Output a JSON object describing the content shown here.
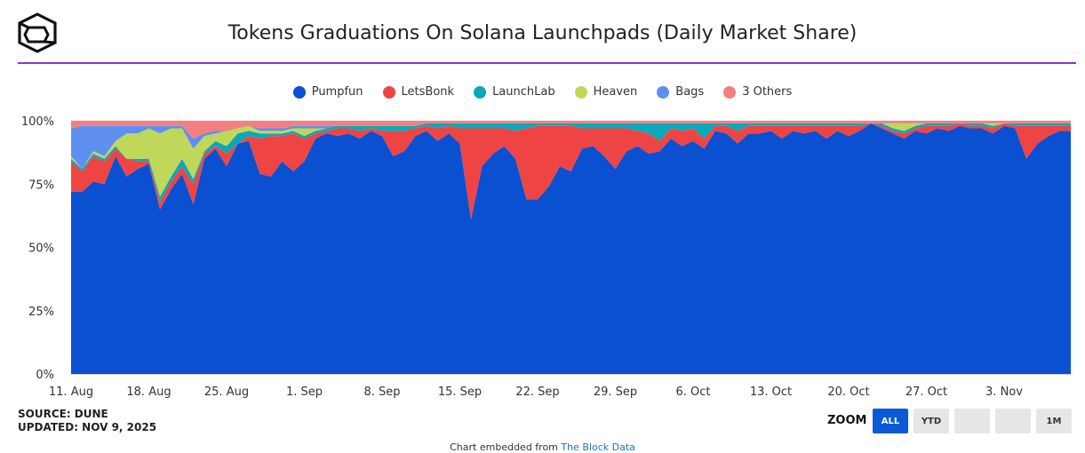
{
  "header": {
    "title": "Tokens Graduations On Solana Launchpads (Daily Market Share)"
  },
  "footer": {
    "source": "SOURCE: DUNE",
    "updated": "UPDATED: NOV 9, 2025",
    "zoom_label": "ZOOM",
    "zoom_buttons": [
      {
        "label": "ALL",
        "active": true
      },
      {
        "label": "YTD",
        "active": false
      },
      {
        "label": "",
        "active": false
      },
      {
        "label": "",
        "active": false
      },
      {
        "label": "1M",
        "active": false
      }
    ],
    "embed_prefix": "Chart embedded from",
    "embed_link": "The Block Data"
  },
  "chart_data": {
    "type": "area",
    "stacked": true,
    "title": "Tokens Graduations On Solana Launchpads (Daily Market Share)",
    "legend_position": "top",
    "ylim": [
      0,
      100
    ],
    "y_ticks": [
      "0%",
      "25%",
      "50%",
      "75%",
      "100%"
    ],
    "x_ticks": [
      "11. Aug",
      "18. Aug",
      "25. Aug",
      "1. Sep",
      "8. Sep",
      "15. Sep",
      "22. Sep",
      "29. Sep",
      "6. Oct",
      "13. Oct",
      "20. Oct",
      "27. Oct",
      "3. Nov"
    ],
    "x_start": "2025-08-11",
    "x_end": "2025-11-09",
    "series": [
      {
        "name": "Pumpfun",
        "color": "#0b50d1"
      },
      {
        "name": "LetsBonk",
        "color": "#ef4444"
      },
      {
        "name": "LaunchLab",
        "color": "#0aa8b8"
      },
      {
        "name": "Heaven",
        "color": "#bfd85a"
      },
      {
        "name": "Bags",
        "color": "#5e8ff0"
      },
      {
        "name": "3 Others",
        "color": "#f57f7f"
      }
    ],
    "points": [
      {
        "date": "2025-08-11",
        "values": [
          72,
          12,
          1,
          1,
          11,
          3
        ]
      },
      {
        "date": "2025-08-12",
        "values": [
          72,
          8,
          1,
          0,
          17,
          2
        ]
      },
      {
        "date": "2025-08-13",
        "values": [
          76,
          10,
          1,
          1,
          10,
          2
        ]
      },
      {
        "date": "2025-08-14",
        "values": [
          75,
          9,
          1,
          1,
          12,
          2
        ]
      },
      {
        "date": "2025-08-15",
        "values": [
          86,
          3,
          1,
          2,
          6,
          2
        ]
      },
      {
        "date": "2025-08-16",
        "values": [
          78,
          7,
          0,
          10,
          3,
          2
        ]
      },
      {
        "date": "2025-08-17",
        "values": [
          81,
          3,
          1,
          10,
          3,
          2
        ]
      },
      {
        "date": "2025-08-18",
        "values": [
          83,
          1,
          1,
          12,
          1,
          2
        ]
      },
      {
        "date": "2025-08-19",
        "values": [
          65,
          3,
          2,
          25,
          3,
          2
        ]
      },
      {
        "date": "2025-08-20",
        "values": [
          73,
          3,
          2,
          19,
          1,
          2
        ]
      },
      {
        "date": "2025-08-21",
        "values": [
          79,
          3,
          3,
          12,
          1,
          2
        ]
      },
      {
        "date": "2025-08-22",
        "values": [
          67,
          8,
          2,
          12,
          4,
          7
        ]
      },
      {
        "date": "2025-08-23",
        "values": [
          85,
          2,
          1,
          6,
          1,
          5
        ]
      },
      {
        "date": "2025-08-24",
        "values": [
          89,
          1,
          2,
          3,
          1,
          4
        ]
      },
      {
        "date": "2025-08-25",
        "values": [
          82,
          5,
          3,
          6,
          0,
          4
        ]
      },
      {
        "date": "2025-08-26",
        "values": [
          91,
          0,
          4,
          2,
          0,
          3
        ]
      },
      {
        "date": "2025-08-27",
        "values": [
          92,
          2,
          2,
          2,
          0,
          2
        ]
      },
      {
        "date": "2025-08-28",
        "values": [
          79,
          14,
          2,
          1,
          1,
          3
        ]
      },
      {
        "date": "2025-08-29",
        "values": [
          78,
          16,
          1,
          1,
          1,
          3
        ]
      },
      {
        "date": "2025-08-30",
        "values": [
          84,
          10,
          1,
          1,
          1,
          3
        ]
      },
      {
        "date": "2025-08-31",
        "values": [
          80,
          15,
          1,
          1,
          1,
          2
        ]
      },
      {
        "date": "2025-09-01",
        "values": [
          84,
          9,
          1,
          3,
          1,
          2
        ]
      },
      {
        "date": "2025-09-02",
        "values": [
          93,
          2,
          1,
          1,
          1,
          2
        ]
      },
      {
        "date": "2025-09-03",
        "values": [
          95,
          1,
          1,
          0,
          1,
          2
        ]
      },
      {
        "date": "2025-09-04",
        "values": [
          94,
          3,
          1,
          0,
          0,
          2
        ]
      },
      {
        "date": "2025-09-05",
        "values": [
          95,
          2,
          1,
          0,
          0,
          2
        ]
      },
      {
        "date": "2025-09-06",
        "values": [
          93,
          3,
          2,
          0,
          0,
          2
        ]
      },
      {
        "date": "2025-09-07",
        "values": [
          96,
          1,
          1,
          0,
          0,
          2
        ]
      },
      {
        "date": "2025-09-08",
        "values": [
          94,
          2,
          2,
          0,
          0,
          2
        ]
      },
      {
        "date": "2025-09-09",
        "values": [
          86,
          10,
          2,
          0,
          0,
          2
        ]
      },
      {
        "date": "2025-09-10",
        "values": [
          88,
          8,
          2,
          0,
          0,
          2
        ]
      },
      {
        "date": "2025-09-11",
        "values": [
          94,
          3,
          1,
          0,
          0,
          2
        ]
      },
      {
        "date": "2025-09-12",
        "values": [
          96,
          2,
          1,
          0,
          0,
          1
        ]
      },
      {
        "date": "2025-09-13",
        "values": [
          92,
          5,
          2,
          0,
          0,
          1
        ]
      },
      {
        "date": "2025-09-14",
        "values": [
          95,
          3,
          1,
          0,
          0,
          1
        ]
      },
      {
        "date": "2025-09-15",
        "values": [
          91,
          6,
          2,
          0,
          0,
          1
        ]
      },
      {
        "date": "2025-09-16",
        "values": [
          61,
          36,
          2,
          0,
          0,
          1
        ]
      },
      {
        "date": "2025-09-17",
        "values": [
          82,
          15,
          2,
          0,
          0,
          1
        ]
      },
      {
        "date": "2025-09-18",
        "values": [
          87,
          10,
          2,
          0,
          0,
          1
        ]
      },
      {
        "date": "2025-09-19",
        "values": [
          90,
          7,
          2,
          0,
          0,
          1
        ]
      },
      {
        "date": "2025-09-20",
        "values": [
          85,
          11,
          3,
          0,
          0,
          1
        ]
      },
      {
        "date": "2025-09-21",
        "values": [
          69,
          28,
          2,
          0,
          0,
          1
        ]
      },
      {
        "date": "2025-09-22",
        "values": [
          69,
          29,
          1,
          0,
          0,
          1
        ]
      },
      {
        "date": "2025-09-23",
        "values": [
          74,
          24,
          1,
          0,
          0,
          1
        ]
      },
      {
        "date": "2025-09-24",
        "values": [
          82,
          16,
          1,
          0,
          0,
          1
        ]
      },
      {
        "date": "2025-09-25",
        "values": [
          80,
          18,
          1,
          0,
          0,
          1
        ]
      },
      {
        "date": "2025-09-26",
        "values": [
          89,
          8,
          2,
          0,
          0,
          1
        ]
      },
      {
        "date": "2025-09-27",
        "values": [
          90,
          7,
          2,
          0,
          0,
          1
        ]
      },
      {
        "date": "2025-09-28",
        "values": [
          86,
          11,
          2,
          0,
          0,
          1
        ]
      },
      {
        "date": "2025-09-29",
        "values": [
          81,
          16,
          2,
          0,
          0,
          1
        ]
      },
      {
        "date": "2025-09-30",
        "values": [
          88,
          9,
          2,
          0,
          0,
          1
        ]
      },
      {
        "date": "2025-10-01",
        "values": [
          90,
          6,
          3,
          0,
          0,
          1
        ]
      },
      {
        "date": "2025-10-02",
        "values": [
          87,
          8,
          4,
          0,
          0,
          1
        ]
      },
      {
        "date": "2025-10-03",
        "values": [
          88,
          4,
          7,
          0,
          0,
          1
        ]
      },
      {
        "date": "2025-10-04",
        "values": [
          93,
          4,
          2,
          0,
          0,
          1
        ]
      },
      {
        "date": "2025-10-05",
        "values": [
          90,
          6,
          3,
          0,
          0,
          1
        ]
      },
      {
        "date": "2025-10-06",
        "values": [
          92,
          5,
          2,
          0,
          0,
          1
        ]
      },
      {
        "date": "2025-10-07",
        "values": [
          89,
          4,
          6,
          0,
          0,
          1
        ]
      },
      {
        "date": "2025-10-08",
        "values": [
          96,
          2,
          1,
          0,
          0,
          1
        ]
      },
      {
        "date": "2025-10-09",
        "values": [
          95,
          3,
          1,
          0,
          0,
          1
        ]
      },
      {
        "date": "2025-10-10",
        "values": [
          91,
          5,
          3,
          0,
          0,
          1
        ]
      },
      {
        "date": "2025-10-11",
        "values": [
          95,
          3,
          1,
          0,
          0,
          1
        ]
      },
      {
        "date": "2025-10-12",
        "values": [
          95,
          3,
          1,
          0,
          0,
          1
        ]
      },
      {
        "date": "2025-10-13",
        "values": [
          96,
          2,
          1,
          0,
          0,
          1
        ]
      },
      {
        "date": "2025-10-14",
        "values": [
          93,
          5,
          1,
          0,
          0,
          1
        ]
      },
      {
        "date": "2025-10-15",
        "values": [
          96,
          2,
          1,
          0,
          0,
          1
        ]
      },
      {
        "date": "2025-10-16",
        "values": [
          95,
          3,
          1,
          0,
          0,
          1
        ]
      },
      {
        "date": "2025-10-17",
        "values": [
          96,
          2,
          1,
          0,
          0,
          1
        ]
      },
      {
        "date": "2025-10-18",
        "values": [
          93,
          5,
          1,
          0,
          0,
          1
        ]
      },
      {
        "date": "2025-10-19",
        "values": [
          96,
          2,
          1,
          0,
          0,
          1
        ]
      },
      {
        "date": "2025-10-20",
        "values": [
          94,
          4,
          1,
          0,
          0,
          1
        ]
      },
      {
        "date": "2025-10-21",
        "values": [
          96,
          2,
          1,
          0,
          0,
          1
        ]
      },
      {
        "date": "2025-10-22",
        "values": [
          99,
          0,
          0,
          0,
          0,
          1
        ]
      },
      {
        "date": "2025-10-23",
        "values": [
          97,
          1,
          1,
          0,
          0,
          1
        ]
      },
      {
        "date": "2025-10-24",
        "values": [
          95,
          1,
          1,
          2,
          0,
          1
        ]
      },
      {
        "date": "2025-10-25",
        "values": [
          93,
          2,
          1,
          3,
          0,
          1
        ]
      },
      {
        "date": "2025-10-26",
        "values": [
          96,
          1,
          1,
          1,
          0,
          1
        ]
      },
      {
        "date": "2025-10-27",
        "values": [
          95,
          3,
          1,
          0,
          0,
          1
        ]
      },
      {
        "date": "2025-10-28",
        "values": [
          97,
          1,
          1,
          0,
          0,
          1
        ]
      },
      {
        "date": "2025-10-29",
        "values": [
          96,
          2,
          1,
          0,
          0,
          1
        ]
      },
      {
        "date": "2025-10-30",
        "values": [
          98,
          1,
          0,
          0,
          0,
          1
        ]
      },
      {
        "date": "2025-10-31",
        "values": [
          97,
          1,
          1,
          0,
          0,
          1
        ]
      },
      {
        "date": "2025-11-01",
        "values": [
          97,
          1,
          1,
          0,
          0,
          1
        ]
      },
      {
        "date": "2025-11-02",
        "values": [
          95,
          2,
          1,
          1,
          0,
          1
        ]
      },
      {
        "date": "2025-11-03",
        "values": [
          98,
          1,
          0,
          0,
          0,
          1
        ]
      },
      {
        "date": "2025-11-04",
        "values": [
          97,
          1,
          1,
          0,
          0,
          1
        ]
      },
      {
        "date": "2025-11-05",
        "values": [
          85,
          13,
          1,
          0,
          0,
          1
        ]
      },
      {
        "date": "2025-11-06",
        "values": [
          91,
          7,
          1,
          0,
          0,
          1
        ]
      },
      {
        "date": "2025-11-07",
        "values": [
          94,
          4,
          1,
          0,
          0,
          1
        ]
      },
      {
        "date": "2025-11-08",
        "values": [
          96,
          2,
          1,
          0,
          0,
          1
        ]
      },
      {
        "date": "2025-11-09",
        "values": [
          96,
          2,
          1,
          0,
          0,
          1
        ]
      }
    ]
  }
}
